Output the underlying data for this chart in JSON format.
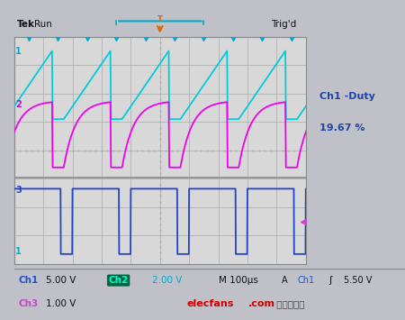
{
  "screen_bg": "#d8d8d8",
  "outer_bg": "#c0c0c8",
  "grid_color": "#aaaaaa",
  "grid_minor_color": "#cccccc",
  "ch1_color": "#00ccdd",
  "ch2_color": "#ee00ee",
  "ch3_color": "#2244cc",
  "text_color_white": "#111111",
  "text_color_cyan": "#0066cc",
  "text_color_blue": "#2244aa",
  "ch1_label": "Ch1",
  "ch2_label": "Ch2",
  "ch3_label": "Ch3",
  "ch1_scale": "5.00 V",
  "ch2_scale": "2.00 V",
  "ch3_scale": "1.00 V",
  "time_scale": "M 100μs",
  "trigger_label": "Trig'd",
  "run_label": "Tek Run",
  "duty_text1": "Ch1 -Duty",
  "duty_text2": "19.67 %",
  "ch1_trig": "5.50 V",
  "watermark1": "elecfans",
  "watermark2": ".com",
  "watermark3": " 电子发烧友",
  "num_cycles": 5,
  "pwm_period": 2.0,
  "pwm_duty": 0.8,
  "grid_rows": 8,
  "grid_cols": 10,
  "header_bg": "#e8e8e8",
  "header_border": "#888888",
  "divider_color": "#888888",
  "label_num_color_1": "#00aacc",
  "label_num_color_2": "#cc00cc",
  "label_num_color_3": "#2244cc",
  "trigger_arrow_color": "#dd6600",
  "trigger_line_color": "#00aacc",
  "tick_color": "#00aacc",
  "ch2_box_bg": "#006644",
  "ch2_box_text": "#00ffcc",
  "bottom_bg": "#e0e0e8",
  "ch3_label_color": "#cc44cc",
  "ch1_bottom_color": "#2255cc",
  "ch_scale_color": "#111111"
}
